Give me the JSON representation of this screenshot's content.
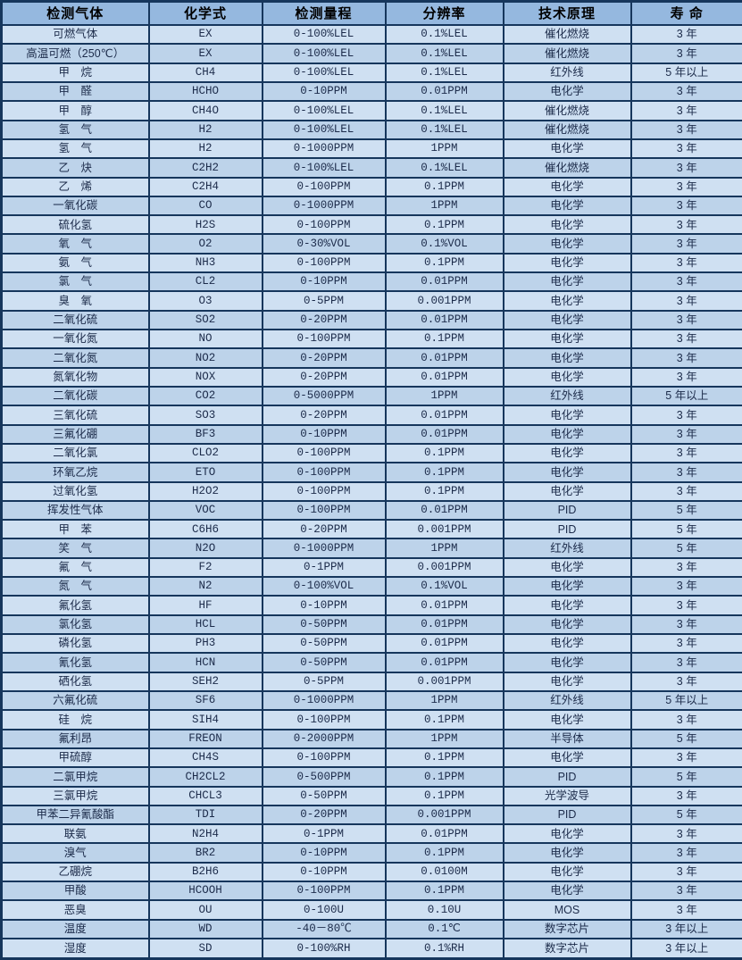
{
  "table": {
    "title": "gas-sensor-specifications",
    "columns": [
      {
        "label": "检测气体"
      },
      {
        "label": "化学式"
      },
      {
        "label": "检测量程"
      },
      {
        "label": "分辨率"
      },
      {
        "label": "技术原理"
      },
      {
        "label": "寿  命"
      }
    ],
    "rows": [
      [
        "可燃气体",
        "EX",
        "0-100%LEL",
        "0.1%LEL",
        "催化燃烧",
        "3 年"
      ],
      [
        "高温可燃（250℃）",
        "EX",
        "0-100%LEL",
        "0.1%LEL",
        "催化燃烧",
        "3 年"
      ],
      [
        "甲　烷",
        "CH4",
        "0-100%LEL",
        "0.1%LEL",
        "红外线",
        "5 年以上"
      ],
      [
        "甲　醛",
        "HCHO",
        "0-10PPM",
        "0.01PPM",
        "电化学",
        "3 年"
      ],
      [
        "甲　醇",
        "CH4O",
        "0-100%LEL",
        "0.1%LEL",
        "催化燃烧",
        "3 年"
      ],
      [
        "氢　气",
        "H2",
        "0-100%LEL",
        "0.1%LEL",
        "催化燃烧",
        "3 年"
      ],
      [
        "氢　气",
        "H2",
        "0-1000PPM",
        "1PPM",
        "电化学",
        "3 年"
      ],
      [
        "乙　炔",
        "C2H2",
        "0-100%LEL",
        "0.1%LEL",
        "催化燃烧",
        "3 年"
      ],
      [
        "乙　烯",
        "C2H4",
        "0-100PPM",
        "0.1PPM",
        "电化学",
        "3 年"
      ],
      [
        "一氧化碳",
        "CO",
        "0-1000PPM",
        "1PPM",
        "电化学",
        "3 年"
      ],
      [
        "硫化氢",
        "H2S",
        "0-100PPM",
        "0.1PPM",
        "电化学",
        "3 年"
      ],
      [
        "氧　气",
        "O2",
        "0-30%VOL",
        "0.1%VOL",
        "电化学",
        "3 年"
      ],
      [
        "氨　气",
        "NH3",
        "0-100PPM",
        "0.1PPM",
        "电化学",
        "3 年"
      ],
      [
        "氯　气",
        "CL2",
        "0-10PPM",
        "0.01PPM",
        "电化学",
        "3 年"
      ],
      [
        "臭　氧",
        "O3",
        "0-5PPM",
        "0.001PPM",
        "电化学",
        "3 年"
      ],
      [
        "二氧化硫",
        "SO2",
        "0-20PPM",
        "0.01PPM",
        "电化学",
        "3 年"
      ],
      [
        "一氧化氮",
        "NO",
        "0-100PPM",
        "0.1PPM",
        "电化学",
        "3 年"
      ],
      [
        "二氧化氮",
        "NO2",
        "0-20PPM",
        "0.01PPM",
        "电化学",
        "3 年"
      ],
      [
        "氮氧化物",
        "NOX",
        "0-20PPM",
        "0.01PPM",
        "电化学",
        "3 年"
      ],
      [
        "二氧化碳",
        "CO2",
        "0-5000PPM",
        "1PPM",
        "红外线",
        "5 年以上"
      ],
      [
        "三氧化硫",
        "SO3",
        "0-20PPM",
        "0.01PPM",
        "电化学",
        "3 年"
      ],
      [
        "三氟化硼",
        "BF3",
        "0-10PPM",
        "0.01PPM",
        "电化学",
        "3 年"
      ],
      [
        "二氧化氯",
        "CLO2",
        "0-100PPM",
        "0.1PPM",
        "电化学",
        "3 年"
      ],
      [
        "环氧乙烷",
        "ETO",
        "0-100PPM",
        "0.1PPM",
        "电化学",
        "3 年"
      ],
      [
        "过氧化氢",
        "H2O2",
        "0-100PPM",
        "0.1PPM",
        "电化学",
        "3 年"
      ],
      [
        "挥发性气体",
        "VOC",
        "0-100PPM",
        "0.01PPM",
        "PID",
        "5 年"
      ],
      [
        "甲　苯",
        "C6H6",
        "0-20PPM",
        "0.001PPM",
        "PID",
        "5 年"
      ],
      [
        "笑　气",
        "N2O",
        "0-1000PPM",
        "1PPM",
        "红外线",
        "5 年"
      ],
      [
        "氟　气",
        "F2",
        "0-1PPM",
        "0.001PPM",
        "电化学",
        "3 年"
      ],
      [
        "氮　气",
        "N2",
        "0-100%VOL",
        "0.1%VOL",
        "电化学",
        "3 年"
      ],
      [
        "氟化氢",
        "HF",
        "0-10PPM",
        "0.01PPM",
        "电化学",
        "3 年"
      ],
      [
        "氯化氢",
        "HCL",
        "0-50PPM",
        "0.01PPM",
        "电化学",
        "3 年"
      ],
      [
        "磷化氢",
        "PH3",
        "0-50PPM",
        "0.01PPM",
        "电化学",
        "3 年"
      ],
      [
        "氰化氢",
        "HCN",
        "0-50PPM",
        "0.01PPM",
        "电化学",
        "3 年"
      ],
      [
        "硒化氢",
        "SEH2",
        "0-5PPM",
        "0.001PPM",
        "电化学",
        "3 年"
      ],
      [
        "六氟化硫",
        "SF6",
        "0-1000PPM",
        "1PPM",
        "红外线",
        "5 年以上"
      ],
      [
        "硅　烷",
        "SIH4",
        "0-100PPM",
        "0.1PPM",
        "电化学",
        "3 年"
      ],
      [
        "氟利昂",
        "FREON",
        "0-2000PPM",
        "1PPM",
        "半导体",
        "5 年"
      ],
      [
        "甲硫醇",
        "CH4S",
        "0-100PPM",
        "0.1PPM",
        "电化学",
        "3 年"
      ],
      [
        "二氯甲烷",
        "CH2CL2",
        "0-500PPM",
        "0.1PPM",
        "PID",
        "5 年"
      ],
      [
        "三氯甲烷",
        "CHCL3",
        "0-50PPM",
        "0.1PPM",
        "光学波导",
        "3 年"
      ],
      [
        "甲苯二异氰酸酯",
        "TDI",
        "0-20PPM",
        "0.001PPM",
        "PID",
        "5 年"
      ],
      [
        "联氨",
        "N2H4",
        "0-1PPM",
        "0.01PPM",
        "电化学",
        "3 年"
      ],
      [
        "溴气",
        "BR2",
        "0-10PPM",
        "0.1PPM",
        "电化学",
        "3 年"
      ],
      [
        "乙硼烷",
        "B2H6",
        "0-10PPM",
        "0.0100M",
        "电化学",
        "3 年"
      ],
      [
        "甲酸",
        "HCOOH",
        "0-100PPM",
        "0.1PPM",
        "电化学",
        "3 年"
      ],
      [
        "恶臭",
        "OU",
        "0-100U",
        "0.10U",
        "MOS",
        "3 年"
      ],
      [
        "温度",
        "WD",
        "-40－80℃",
        "0.1℃",
        "数字芯片",
        "3 年以上"
      ],
      [
        "湿度",
        "SD",
        "0-100%RH",
        "0.1%RH",
        "数字芯片",
        "3 年以上"
      ]
    ]
  },
  "colors": {
    "header_bg": "#95b8df",
    "row_light": "#cfe0f2",
    "row_dark": "#bdd3ea",
    "border": "#16365c",
    "text": "#1c2b4a"
  }
}
